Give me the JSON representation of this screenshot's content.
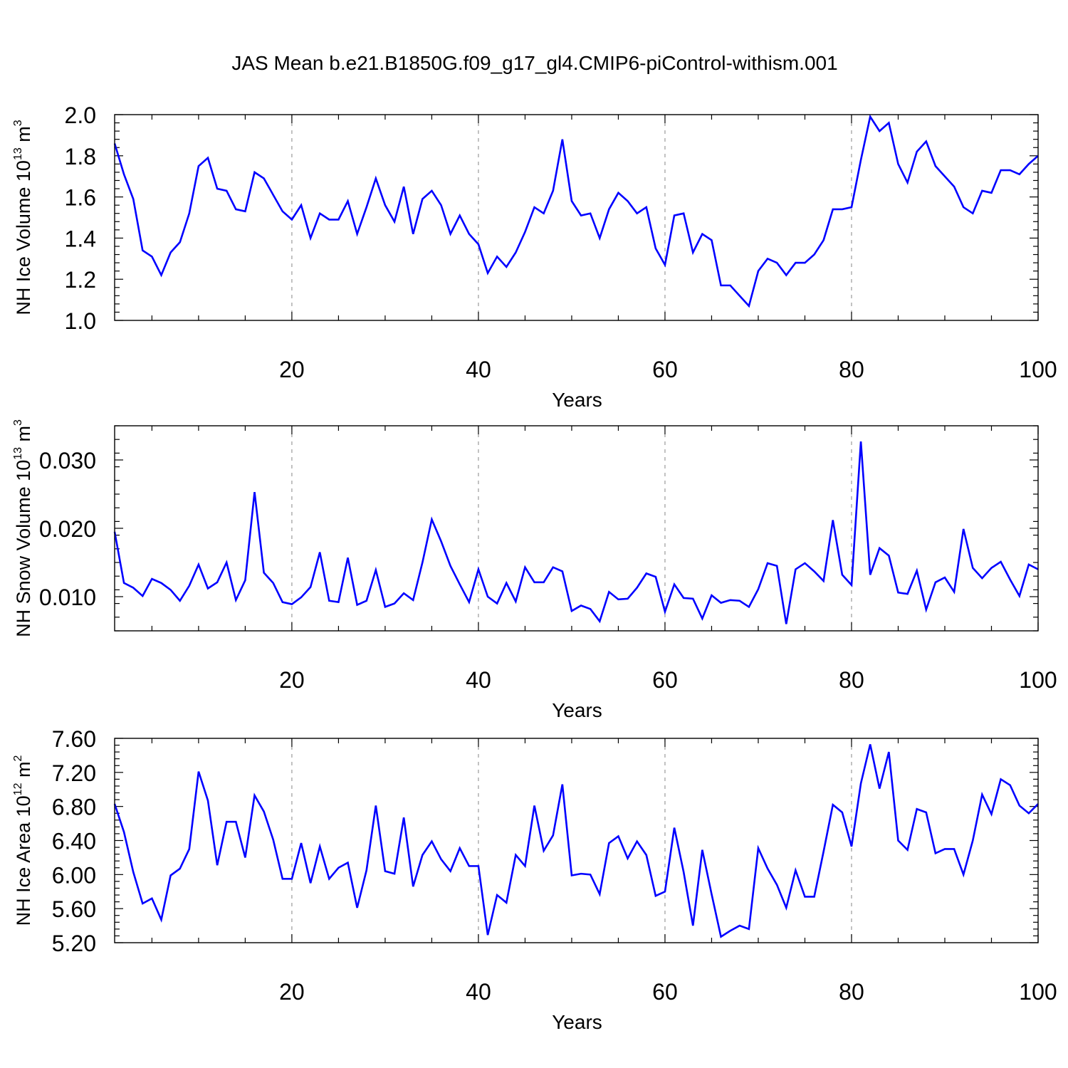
{
  "figure": {
    "title": "JAS Mean b.e21.B1850G.f09_g17_gl4.CMIP6-piControl-withism.001",
    "line_color": "#0000ff",
    "frame_color": "#000000",
    "grid_color": "#999999"
  },
  "chart_data": [
    {
      "type": "line",
      "id": "ice-volume",
      "title": "",
      "xlabel": "Years",
      "ylabel": {
        "base": "NH Ice Volume 10",
        "exp1": "13",
        "mid": " m",
        "exp2": "3"
      },
      "xlim": [
        1,
        100
      ],
      "ylim": [
        1.0,
        2.0
      ],
      "xticks": [
        20,
        40,
        60,
        80,
        100
      ],
      "xtick_labels": [
        "20",
        "40",
        "60",
        "80",
        "100"
      ],
      "yticks": [
        1.0,
        1.2,
        1.4,
        1.6,
        1.8,
        2.0
      ],
      "ytick_labels": [
        "1.0",
        "1.2",
        "1.4",
        "1.6",
        "1.8",
        "2.0"
      ],
      "grid_x": [
        20,
        40,
        60,
        80
      ],
      "x": [
        1,
        2,
        3,
        4,
        5,
        6,
        7,
        8,
        9,
        10,
        11,
        12,
        13,
        14,
        15,
        16,
        17,
        18,
        19,
        20,
        21,
        22,
        23,
        24,
        25,
        26,
        27,
        28,
        29,
        30,
        31,
        32,
        33,
        34,
        35,
        36,
        37,
        38,
        39,
        40,
        41,
        42,
        43,
        44,
        45,
        46,
        47,
        48,
        49,
        50,
        51,
        52,
        53,
        54,
        55,
        56,
        57,
        58,
        59,
        60,
        61,
        62,
        63,
        64,
        65,
        66,
        67,
        68,
        69,
        70,
        71,
        72,
        73,
        74,
        75,
        76,
        77,
        78,
        79,
        80,
        81,
        82,
        83,
        84,
        85,
        86,
        87,
        88,
        89,
        90,
        91,
        92,
        93,
        94,
        95,
        96,
        97,
        98,
        99,
        100
      ],
      "values": [
        1.86,
        1.71,
        1.59,
        1.34,
        1.31,
        1.22,
        1.33,
        1.38,
        1.52,
        1.75,
        1.79,
        1.64,
        1.63,
        1.54,
        1.53,
        1.72,
        1.69,
        1.61,
        1.53,
        1.49,
        1.56,
        1.4,
        1.52,
        1.49,
        1.49,
        1.58,
        1.42,
        1.55,
        1.69,
        1.56,
        1.48,
        1.65,
        1.42,
        1.59,
        1.63,
        1.56,
        1.42,
        1.51,
        1.42,
        1.37,
        1.23,
        1.31,
        1.26,
        1.33,
        1.43,
        1.55,
        1.52,
        1.63,
        1.88,
        1.58,
        1.51,
        1.52,
        1.4,
        1.54,
        1.62,
        1.58,
        1.52,
        1.55,
        1.35,
        1.27,
        1.51,
        1.52,
        1.33,
        1.42,
        1.39,
        1.17,
        1.17,
        1.12,
        1.07,
        1.24,
        1.3,
        1.28,
        1.22,
        1.28,
        1.28,
        1.32,
        1.39,
        1.54,
        1.54,
        1.55,
        1.78,
        1.99,
        1.92,
        1.96,
        1.76,
        1.67,
        1.82,
        1.87,
        1.75,
        1.7,
        1.65,
        1.55,
        1.52,
        1.63,
        1.62,
        1.73,
        1.73,
        1.71,
        1.76,
        1.8
      ]
    },
    {
      "type": "line",
      "id": "snow-volume",
      "title": "",
      "xlabel": "Years",
      "ylabel": {
        "base": "NH Snow Volume 10",
        "exp1": "13",
        "mid": " m",
        "exp2": "3"
      },
      "xlim": [
        1,
        100
      ],
      "ylim": [
        0.005,
        0.035
      ],
      "xticks": [
        20,
        40,
        60,
        80,
        100
      ],
      "xtick_labels": [
        "20",
        "40",
        "60",
        "80",
        "100"
      ],
      "yticks": [
        0.01,
        0.02,
        0.03
      ],
      "ytick_labels": [
        "0.010",
        "0.020",
        "0.030"
      ],
      "grid_x": [
        20,
        40,
        60,
        80
      ],
      "x": [
        1,
        2,
        3,
        4,
        5,
        6,
        7,
        8,
        9,
        10,
        11,
        12,
        13,
        14,
        15,
        16,
        17,
        18,
        19,
        20,
        21,
        22,
        23,
        24,
        25,
        26,
        27,
        28,
        29,
        30,
        31,
        32,
        33,
        34,
        35,
        36,
        37,
        38,
        39,
        40,
        41,
        42,
        43,
        44,
        45,
        46,
        47,
        48,
        49,
        50,
        51,
        52,
        53,
        54,
        55,
        56,
        57,
        58,
        59,
        60,
        61,
        62,
        63,
        64,
        65,
        66,
        67,
        68,
        69,
        70,
        71,
        72,
        73,
        74,
        75,
        76,
        77,
        78,
        79,
        80,
        81,
        82,
        83,
        84,
        85,
        86,
        87,
        88,
        89,
        90,
        91,
        92,
        93,
        94,
        95,
        96,
        97,
        98,
        99,
        100
      ],
      "values": [
        0.0195,
        0.012,
        0.0113,
        0.0101,
        0.0126,
        0.012,
        0.011,
        0.0094,
        0.0116,
        0.0147,
        0.0112,
        0.0121,
        0.015,
        0.0095,
        0.0124,
        0.0253,
        0.0135,
        0.012,
        0.0092,
        0.0089,
        0.0099,
        0.0114,
        0.0165,
        0.0094,
        0.0092,
        0.0157,
        0.0088,
        0.0094,
        0.0139,
        0.0085,
        0.009,
        0.0105,
        0.0095,
        0.015,
        0.0213,
        0.0181,
        0.0145,
        0.0118,
        0.0092,
        0.014,
        0.01,
        0.009,
        0.012,
        0.0093,
        0.0143,
        0.0121,
        0.0121,
        0.0143,
        0.0137,
        0.0079,
        0.0087,
        0.0082,
        0.0064,
        0.0107,
        0.0096,
        0.0097,
        0.0113,
        0.0134,
        0.0129,
        0.0078,
        0.0118,
        0.0098,
        0.0097,
        0.0068,
        0.0102,
        0.0091,
        0.0095,
        0.0094,
        0.0085,
        0.0111,
        0.0149,
        0.0145,
        0.006,
        0.014,
        0.0149,
        0.0137,
        0.0123,
        0.0212,
        0.0132,
        0.0117,
        0.0327,
        0.0132,
        0.0171,
        0.016,
        0.0106,
        0.0104,
        0.0138,
        0.0081,
        0.0121,
        0.0128,
        0.0107,
        0.0199,
        0.0142,
        0.0127,
        0.0142,
        0.0151,
        0.0125,
        0.0101,
        0.0147,
        0.014
      ]
    },
    {
      "type": "line",
      "id": "ice-area",
      "title": "",
      "xlabel": "Years",
      "ylabel": {
        "base": "NH Ice Area 10",
        "exp1": "12",
        "mid": " m",
        "exp2": "2"
      },
      "xlim": [
        1,
        100
      ],
      "ylim": [
        5.2,
        7.6
      ],
      "xticks": [
        20,
        40,
        60,
        80,
        100
      ],
      "xtick_labels": [
        "20",
        "40",
        "60",
        "80",
        "100"
      ],
      "yticks": [
        5.2,
        5.6,
        6.0,
        6.4,
        6.8,
        7.2,
        7.6
      ],
      "ytick_labels": [
        "5.20",
        "5.60",
        "6.00",
        "6.40",
        "6.80",
        "7.20",
        "7.60"
      ],
      "grid_x": [
        20,
        40,
        60,
        80
      ],
      "x": [
        1,
        2,
        3,
        4,
        5,
        6,
        7,
        8,
        9,
        10,
        11,
        12,
        13,
        14,
        15,
        16,
        17,
        18,
        19,
        20,
        21,
        22,
        23,
        24,
        25,
        26,
        27,
        28,
        29,
        30,
        31,
        32,
        33,
        34,
        35,
        36,
        37,
        38,
        39,
        40,
        41,
        42,
        43,
        44,
        45,
        46,
        47,
        48,
        49,
        50,
        51,
        52,
        53,
        54,
        55,
        56,
        57,
        58,
        59,
        60,
        61,
        62,
        63,
        64,
        65,
        66,
        67,
        68,
        69,
        70,
        71,
        72,
        73,
        74,
        75,
        76,
        77,
        78,
        79,
        80,
        81,
        82,
        83,
        84,
        85,
        86,
        87,
        88,
        89,
        90,
        91,
        92,
        93,
        94,
        95,
        96,
        97,
        98,
        99,
        100
      ],
      "values": [
        6.83,
        6.5,
        6.03,
        5.66,
        5.72,
        5.47,
        5.99,
        6.07,
        6.3,
        7.21,
        6.87,
        6.11,
        6.62,
        6.62,
        6.2,
        6.93,
        6.74,
        6.41,
        5.95,
        5.95,
        6.37,
        5.9,
        6.33,
        5.95,
        6.08,
        6.14,
        5.61,
        6.05,
        6.81,
        6.04,
        6.01,
        6.67,
        5.86,
        6.23,
        6.39,
        6.18,
        6.04,
        6.31,
        6.1,
        6.1,
        5.29,
        5.76,
        5.67,
        6.23,
        6.1,
        6.81,
        6.28,
        6.46,
        7.06,
        5.99,
        6.01,
        6.0,
        5.77,
        6.37,
        6.45,
        6.19,
        6.39,
        6.23,
        5.75,
        5.8,
        6.55,
        6.03,
        5.4,
        6.29,
        5.77,
        5.27,
        5.34,
        5.4,
        5.36,
        6.31,
        6.07,
        5.88,
        5.61,
        6.05,
        5.74,
        5.74,
        6.27,
        6.82,
        6.73,
        6.33,
        7.07,
        7.53,
        7.01,
        7.44,
        6.4,
        6.29,
        6.77,
        6.73,
        6.25,
        6.3,
        6.3,
        6.0,
        6.4,
        6.94,
        6.71,
        7.12,
        7.05,
        6.81,
        6.72,
        6.83
      ]
    }
  ]
}
